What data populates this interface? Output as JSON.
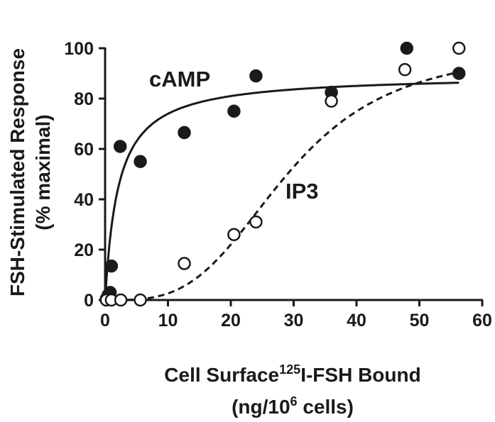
{
  "chart_data": {
    "type": "scatter",
    "ylabel": {
      "line1": "FSH-Stimulated Response",
      "line2": "(% maximal)"
    },
    "xlabel": {
      "line1_pre": "Cell Surface",
      "line1_sup": "125",
      "line1_post": "I-FSH Bound",
      "line2_pre": "(ng/10",
      "line2_sup": "6",
      "line2_post": " cells)"
    },
    "xlim": [
      0,
      60
    ],
    "ylim": [
      0,
      100
    ],
    "x_ticks": [
      "0",
      "10",
      "20",
      "30",
      "40",
      "50",
      "60"
    ],
    "y_ticks": [
      "0",
      "20",
      "40",
      "60",
      "80",
      "100"
    ],
    "grid": false,
    "series": [
      {
        "name": "cAMP",
        "marker": "filled-circle",
        "fit_line": "solid",
        "points": [
          {
            "x": 0.2,
            "y": 0.5
          },
          {
            "x": 0.5,
            "y": 2
          },
          {
            "x": 0.8,
            "y": 3
          },
          {
            "x": 1,
            "y": 13.5
          },
          {
            "x": 2.4,
            "y": 61
          },
          {
            "x": 5.6,
            "y": 55
          },
          {
            "x": 12.6,
            "y": 66.5
          },
          {
            "x": 20.5,
            "y": 75
          },
          {
            "x": 24,
            "y": 89
          },
          {
            "x": 36,
            "y": 82.5
          },
          {
            "x": 48,
            "y": 100
          },
          {
            "x": 56.3,
            "y": 90
          }
        ]
      },
      {
        "name": "IP3",
        "marker": "open-circle",
        "fit_line": "dashed",
        "points": [
          {
            "x": 0.2,
            "y": 0
          },
          {
            "x": 1,
            "y": 0
          },
          {
            "x": 2.5,
            "y": 0
          },
          {
            "x": 5.6,
            "y": 0
          },
          {
            "x": 12.6,
            "y": 14.5
          },
          {
            "x": 20.5,
            "y": 26
          },
          {
            "x": 24,
            "y": 31
          },
          {
            "x": 36,
            "y": 79
          },
          {
            "x": 47.7,
            "y": 91.5
          },
          {
            "x": 56.3,
            "y": 100
          }
        ]
      }
    ],
    "colors": {
      "ink": "#1a1a1a",
      "background": "#ffffff"
    }
  }
}
